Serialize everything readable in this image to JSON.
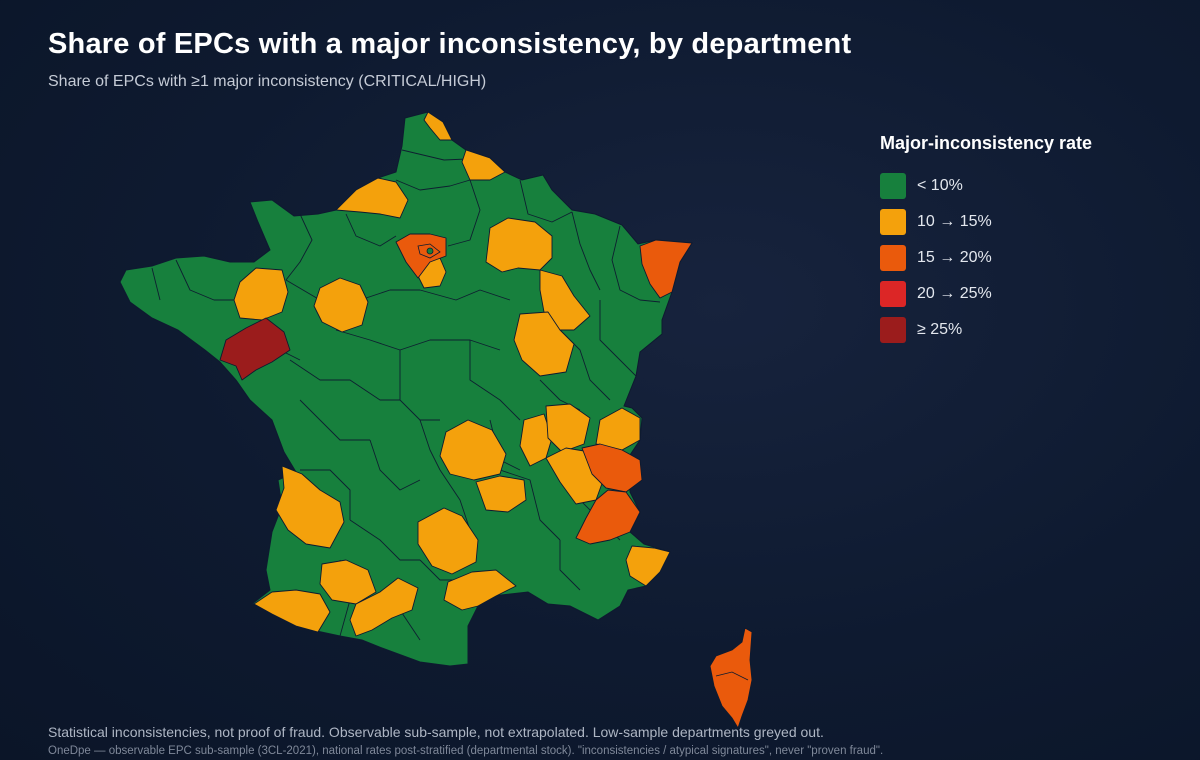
{
  "header": {
    "title": "Share of EPCs with a major inconsistency, by department",
    "subtitle": "Share of EPCs with ≥1 major inconsistency (CRITICAL/HIGH)"
  },
  "legend": {
    "title": "Major-inconsistency rate",
    "items": [
      {
        "label": "< 10%",
        "color": "#17803d"
      },
      {
        "label": "10 → 15%",
        "color": "#f4a10c"
      },
      {
        "label": "15 → 20%",
        "color": "#ea5a0c"
      },
      {
        "label": "20 → 25%",
        "color": "#dc2626"
      },
      {
        "label": "≥ 25%",
        "color": "#9b1c1c"
      }
    ]
  },
  "map": {
    "bins": {
      "low": "#17803d",
      "mid": "#f4a10c",
      "high": "#ea5a0c",
      "very_high": "#dc2626",
      "top": "#9b1c1c"
    },
    "border_color": "#0e1a30"
  },
  "footer": {
    "note": "Statistical inconsistencies, not proof of fraud. Observable sub-sample, not extrapolated. Low-sample departments greyed out.",
    "source": "OneDpe — observable EPC sub-sample (3CL-2021), national rates post-stratified (departmental stock). \"inconsistencies / atypical signatures\", never \"proven fraud\"."
  }
}
